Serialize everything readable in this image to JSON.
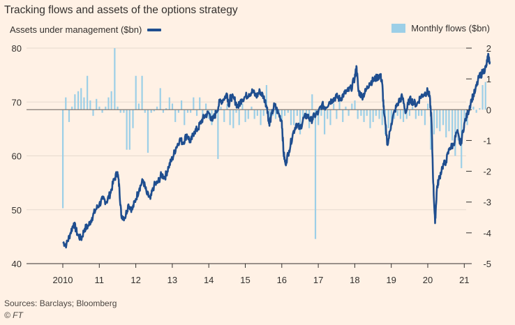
{
  "title": "Tracking flows and assets of the options strategy",
  "legend": {
    "left": "Assets under management ($bn)",
    "right": "Monthly flows ($bn)"
  },
  "source": "Sources: Barclays; Bloomberg",
  "credit": "© FT",
  "colors": {
    "background": "#fff1e5",
    "aum_line": "#1f4e8f",
    "flow_bars": "#9ccfe7",
    "grid": "#e6d9ce",
    "zero_line": "#807973"
  },
  "chart_data": {
    "type": "bar+line",
    "x_tick_labels": [
      "2010",
      "11",
      "12",
      "13",
      "14",
      "15",
      "16",
      "17",
      "18",
      "19",
      "20",
      "21"
    ],
    "x_range": [
      2010,
      2021.7
    ],
    "y_left": {
      "label": "Assets under management ($bn)",
      "range": [
        40,
        80
      ],
      "ticks": [
        "40",
        "50",
        "60",
        "70",
        "80"
      ]
    },
    "y_right": {
      "label": "Monthly flows ($bn)",
      "range": [
        -5,
        2
      ],
      "ticks": [
        "2",
        "1",
        "0",
        "-1",
        "-2",
        "-3",
        "-4",
        "-5"
      ]
    },
    "grid": "horizontal",
    "series": [
      {
        "name": "Assets under management ($bn)",
        "kind": "line",
        "axis": "left",
        "points": [
          [
            2010.0,
            44.0
          ],
          [
            2010.1,
            43.5
          ],
          [
            2010.2,
            45.5
          ],
          [
            2010.3,
            47.5
          ],
          [
            2010.4,
            45.5
          ],
          [
            2010.5,
            44.5
          ],
          [
            2010.6,
            46.5
          ],
          [
            2010.7,
            47.0
          ],
          [
            2010.8,
            48.5
          ],
          [
            2010.9,
            50.0
          ],
          [
            2011.0,
            51.0
          ],
          [
            2011.1,
            52.0
          ],
          [
            2011.2,
            51.5
          ],
          [
            2011.3,
            53.0
          ],
          [
            2011.4,
            55.5
          ],
          [
            2011.5,
            57.0
          ],
          [
            2011.55,
            54.0
          ],
          [
            2011.6,
            49.0
          ],
          [
            2011.7,
            48.5
          ],
          [
            2011.8,
            51.0
          ],
          [
            2011.9,
            50.0
          ],
          [
            2012.0,
            52.0
          ],
          [
            2012.1,
            54.0
          ],
          [
            2012.2,
            55.5
          ],
          [
            2012.3,
            53.0
          ],
          [
            2012.4,
            52.0
          ],
          [
            2012.5,
            54.5
          ],
          [
            2012.6,
            55.0
          ],
          [
            2012.7,
            56.5
          ],
          [
            2012.8,
            56.0
          ],
          [
            2012.9,
            58.0
          ],
          [
            2013.0,
            59.5
          ],
          [
            2013.1,
            61.5
          ],
          [
            2013.2,
            63.0
          ],
          [
            2013.3,
            62.5
          ],
          [
            2013.4,
            64.0
          ],
          [
            2013.5,
            62.5
          ],
          [
            2013.6,
            64.5
          ],
          [
            2013.7,
            65.0
          ],
          [
            2013.8,
            66.5
          ],
          [
            2013.9,
            67.5
          ],
          [
            2014.0,
            68.0
          ],
          [
            2014.1,
            66.5
          ],
          [
            2014.2,
            68.0
          ],
          [
            2014.3,
            70.0
          ],
          [
            2014.4,
            70.5
          ],
          [
            2014.5,
            71.5
          ],
          [
            2014.55,
            69.5
          ],
          [
            2014.6,
            71.0
          ],
          [
            2014.7,
            70.5
          ],
          [
            2014.8,
            69.0
          ],
          [
            2014.9,
            70.5
          ],
          [
            2015.0,
            71.0
          ],
          [
            2015.1,
            71.5
          ],
          [
            2015.2,
            72.0
          ],
          [
            2015.3,
            71.0
          ],
          [
            2015.4,
            72.0
          ],
          [
            2015.5,
            71.0
          ],
          [
            2015.6,
            69.0
          ],
          [
            2015.65,
            66.0
          ],
          [
            2015.7,
            67.0
          ],
          [
            2015.8,
            69.5
          ],
          [
            2015.9,
            68.0
          ],
          [
            2016.0,
            66.5
          ],
          [
            2016.05,
            60.5
          ],
          [
            2016.1,
            58.5
          ],
          [
            2016.2,
            61.0
          ],
          [
            2016.3,
            64.0
          ],
          [
            2016.4,
            66.0
          ],
          [
            2016.5,
            65.0
          ],
          [
            2016.6,
            67.0
          ],
          [
            2016.7,
            67.5
          ],
          [
            2016.8,
            66.5
          ],
          [
            2016.9,
            67.5
          ],
          [
            2017.0,
            68.0
          ],
          [
            2017.1,
            69.5
          ],
          [
            2017.2,
            69.0
          ],
          [
            2017.3,
            70.0
          ],
          [
            2017.4,
            70.5
          ],
          [
            2017.5,
            71.0
          ],
          [
            2017.6,
            70.5
          ],
          [
            2017.7,
            71.5
          ],
          [
            2017.8,
            72.0
          ],
          [
            2017.9,
            72.5
          ],
          [
            2018.0,
            74.5
          ],
          [
            2018.05,
            76.5
          ],
          [
            2018.1,
            72.0
          ],
          [
            2018.2,
            71.0
          ],
          [
            2018.3,
            72.0
          ],
          [
            2018.4,
            73.5
          ],
          [
            2018.5,
            74.0
          ],
          [
            2018.6,
            74.5
          ],
          [
            2018.7,
            75.0
          ],
          [
            2018.75,
            73.5
          ],
          [
            2018.8,
            68.0
          ],
          [
            2018.9,
            62.0
          ],
          [
            2019.0,
            66.0
          ],
          [
            2019.1,
            68.5
          ],
          [
            2019.2,
            70.0
          ],
          [
            2019.3,
            71.0
          ],
          [
            2019.4,
            68.0
          ],
          [
            2019.5,
            70.5
          ],
          [
            2019.6,
            70.0
          ],
          [
            2019.7,
            69.5
          ],
          [
            2019.8,
            71.0
          ],
          [
            2019.9,
            71.5
          ],
          [
            2020.0,
            72.0
          ],
          [
            2020.05,
            71.0
          ],
          [
            2020.1,
            67.0
          ],
          [
            2020.15,
            55.0
          ],
          [
            2020.2,
            47.5
          ],
          [
            2020.25,
            54.0
          ],
          [
            2020.3,
            55.5
          ],
          [
            2020.4,
            58.0
          ],
          [
            2020.5,
            59.0
          ],
          [
            2020.6,
            61.5
          ],
          [
            2020.7,
            62.0
          ],
          [
            2020.8,
            64.5
          ],
          [
            2020.9,
            62.0
          ],
          [
            2021.0,
            66.0
          ],
          [
            2021.1,
            68.0
          ],
          [
            2021.2,
            70.5
          ],
          [
            2021.3,
            72.0
          ],
          [
            2021.4,
            74.5
          ],
          [
            2021.5,
            75.5
          ],
          [
            2021.6,
            76.5
          ],
          [
            2021.65,
            78.5
          ],
          [
            2021.7,
            77.5
          ]
        ]
      },
      {
        "name": "Monthly flows ($bn)",
        "kind": "bar",
        "axis": "right",
        "points": [
          [
            2010.0,
            -3.2
          ],
          [
            2010.08,
            0.4
          ],
          [
            2010.17,
            -0.4
          ],
          [
            2010.25,
            0.1
          ],
          [
            2010.33,
            0.5
          ],
          [
            2010.42,
            0.6
          ],
          [
            2010.5,
            0.7
          ],
          [
            2010.58,
            0.4
          ],
          [
            2010.67,
            1.1
          ],
          [
            2010.75,
            0.3
          ],
          [
            2010.83,
            -0.2
          ],
          [
            2010.92,
            0.35
          ],
          [
            2011.0,
            0.1
          ],
          [
            2011.08,
            -0.1
          ],
          [
            2011.17,
            0.1
          ],
          [
            2011.25,
            0.4
          ],
          [
            2011.33,
            0.6
          ],
          [
            2011.42,
            2.0
          ],
          [
            2011.5,
            0.1
          ],
          [
            2011.58,
            -0.1
          ],
          [
            2011.67,
            -0.1
          ],
          [
            2011.75,
            -1.3
          ],
          [
            2011.83,
            -1.3
          ],
          [
            2011.92,
            -0.6
          ],
          [
            2012.0,
            1.1
          ],
          [
            2012.08,
            0.2
          ],
          [
            2012.17,
            1.1
          ],
          [
            2012.25,
            -0.1
          ],
          [
            2012.33,
            -1.4
          ],
          [
            2012.42,
            -0.1
          ],
          [
            2012.5,
            -0.05
          ],
          [
            2012.58,
            0.1
          ],
          [
            2012.67,
            0.7
          ],
          [
            2012.75,
            -0.1
          ],
          [
            2012.83,
            0.05
          ],
          [
            2012.92,
            0.4
          ],
          [
            2013.0,
            0.2
          ],
          [
            2013.08,
            -0.4
          ],
          [
            2013.17,
            -0.1
          ],
          [
            2013.25,
            0.3
          ],
          [
            2013.33,
            -0.5
          ],
          [
            2013.42,
            -0.1
          ],
          [
            2013.5,
            -0.1
          ],
          [
            2013.58,
            0.4
          ],
          [
            2013.67,
            -0.2
          ],
          [
            2013.75,
            0.4
          ],
          [
            2013.83,
            -0.2
          ],
          [
            2013.92,
            0.2
          ],
          [
            2014.0,
            -0.3
          ],
          [
            2014.08,
            -0.5
          ],
          [
            2014.17,
            -0.2
          ],
          [
            2014.25,
            -1.6
          ],
          [
            2014.33,
            0.1
          ],
          [
            2014.42,
            -0.4
          ],
          [
            2014.5,
            0.2
          ],
          [
            2014.58,
            -0.5
          ],
          [
            2014.67,
            -0.6
          ],
          [
            2014.75,
            -0.1
          ],
          [
            2014.83,
            -0.5
          ],
          [
            2014.92,
            0.2
          ],
          [
            2015.0,
            -0.4
          ],
          [
            2015.08,
            -0.3
          ],
          [
            2015.17,
            0.1
          ],
          [
            2015.25,
            -0.3
          ],
          [
            2015.33,
            -0.2
          ],
          [
            2015.42,
            -0.5
          ],
          [
            2015.5,
            -0.2
          ],
          [
            2015.58,
            0.8
          ],
          [
            2015.67,
            -0.5
          ],
          [
            2015.75,
            -0.2
          ],
          [
            2015.83,
            -0.3
          ],
          [
            2015.92,
            -0.2
          ],
          [
            2016.0,
            -0.4
          ],
          [
            2016.08,
            -0.2
          ],
          [
            2016.17,
            -0.1
          ],
          [
            2016.25,
            -0.5
          ],
          [
            2016.33,
            -0.5
          ],
          [
            2016.42,
            -0.2
          ],
          [
            2016.5,
            -0.8
          ],
          [
            2016.58,
            -0.3
          ],
          [
            2016.67,
            -0.2
          ],
          [
            2016.75,
            -0.6
          ],
          [
            2016.83,
            0.5
          ],
          [
            2016.92,
            -4.2
          ],
          [
            2017.0,
            -0.5
          ],
          [
            2017.08,
            -0.2
          ],
          [
            2017.17,
            -0.8
          ],
          [
            2017.25,
            -0.3
          ],
          [
            2017.33,
            -0.5
          ],
          [
            2017.42,
            0.2
          ],
          [
            2017.5,
            -0.3
          ],
          [
            2017.58,
            0.3
          ],
          [
            2017.67,
            -0.4
          ],
          [
            2017.75,
            0.1
          ],
          [
            2017.83,
            -0.2
          ],
          [
            2017.92,
            0.2
          ],
          [
            2018.0,
            0.3
          ],
          [
            2018.08,
            -0.3
          ],
          [
            2018.17,
            -0.2
          ],
          [
            2018.25,
            -0.4
          ],
          [
            2018.33,
            -0.2
          ],
          [
            2018.42,
            -0.6
          ],
          [
            2018.5,
            -0.4
          ],
          [
            2018.58,
            -0.2
          ],
          [
            2018.67,
            -0.3
          ],
          [
            2018.75,
            -0.5
          ],
          [
            2018.83,
            -0.8
          ],
          [
            2018.92,
            -0.6
          ],
          [
            2019.0,
            -0.5
          ],
          [
            2019.08,
            -0.3
          ],
          [
            2019.17,
            -0.2
          ],
          [
            2019.25,
            -0.3
          ],
          [
            2019.33,
            -0.4
          ],
          [
            2019.42,
            -0.3
          ],
          [
            2019.5,
            -0.2
          ],
          [
            2019.58,
            0.1
          ],
          [
            2019.67,
            -0.3
          ],
          [
            2019.75,
            -0.2
          ],
          [
            2019.83,
            -0.2
          ],
          [
            2019.92,
            -0.5
          ],
          [
            2020.0,
            0.2
          ],
          [
            2020.08,
            -1.3
          ],
          [
            2020.17,
            -0.8
          ],
          [
            2020.25,
            -0.6
          ],
          [
            2020.33,
            -0.7
          ],
          [
            2020.42,
            -0.5
          ],
          [
            2020.5,
            -0.9
          ],
          [
            2020.58,
            -0.7
          ],
          [
            2020.67,
            -1.0
          ],
          [
            2020.75,
            -1.5
          ],
          [
            2020.83,
            -1.0
          ],
          [
            2020.92,
            -1.9
          ],
          [
            2021.0,
            -0.6
          ],
          [
            2021.08,
            -0.5
          ],
          [
            2021.17,
            0.1
          ],
          [
            2021.25,
            0.1
          ],
          [
            2021.33,
            -0.1
          ],
          [
            2021.42,
            0.05
          ],
          [
            2021.5,
            0.8
          ],
          [
            2021.58,
            0.9
          ]
        ]
      }
    ]
  }
}
